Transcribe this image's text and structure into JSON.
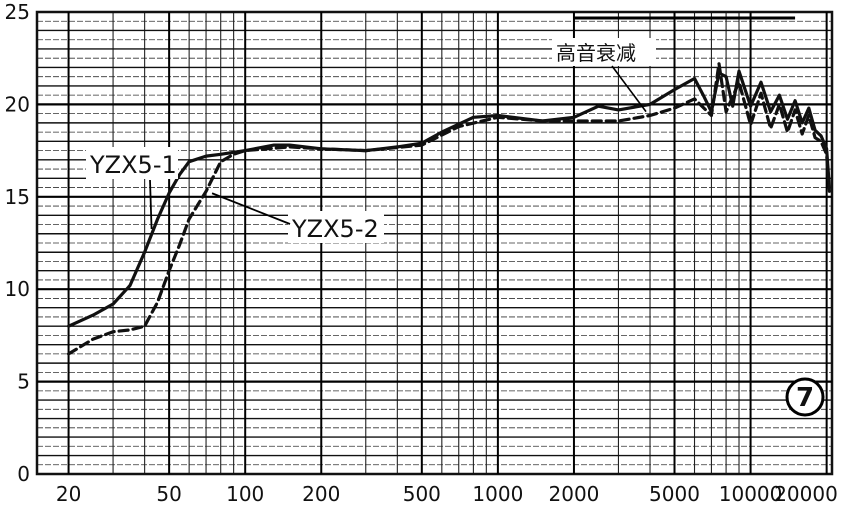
{
  "chart_data": {
    "type": "line",
    "title": "",
    "xlabel": "",
    "ylabel": "",
    "x_scale": "log",
    "xlim": [
      15,
      21000
    ],
    "ylim": [
      0,
      25
    ],
    "grid": true,
    "x_ticks": [
      {
        "value": 20,
        "label": "20"
      },
      {
        "value": 50,
        "label": "50"
      },
      {
        "value": 100,
        "label": "100"
      },
      {
        "value": 200,
        "label": "200"
      },
      {
        "value": 500,
        "label": "500"
      },
      {
        "value": 1000,
        "label": "1000"
      },
      {
        "value": 2000,
        "label": "2000"
      },
      {
        "value": 5000,
        "label": "5000"
      },
      {
        "value": 10000,
        "label": "10000"
      },
      {
        "value": 20000,
        "label": "20000"
      }
    ],
    "y_ticks": [
      {
        "value": 0,
        "label": "0"
      },
      {
        "value": 5,
        "label": "5"
      },
      {
        "value": 10,
        "label": "10"
      },
      {
        "value": 15,
        "label": "15"
      },
      {
        "value": 20,
        "label": "20"
      },
      {
        "value": 25,
        "label": "25"
      }
    ],
    "series": [
      {
        "name": "YZX5-1",
        "style": "solid",
        "color": "#111111",
        "points": [
          [
            20,
            8.0
          ],
          [
            25,
            8.6
          ],
          [
            30,
            9.2
          ],
          [
            35,
            10.2
          ],
          [
            40,
            12.0
          ],
          [
            45,
            13.8
          ],
          [
            50,
            15.2
          ],
          [
            55,
            16.2
          ],
          [
            60,
            16.9
          ],
          [
            70,
            17.2
          ],
          [
            80,
            17.3
          ],
          [
            100,
            17.5
          ],
          [
            130,
            17.8
          ],
          [
            150,
            17.8
          ],
          [
            200,
            17.6
          ],
          [
            300,
            17.5
          ],
          [
            400,
            17.7
          ],
          [
            500,
            17.9
          ],
          [
            600,
            18.5
          ],
          [
            800,
            19.3
          ],
          [
            1000,
            19.4
          ],
          [
            1500,
            19.1
          ],
          [
            2000,
            19.3
          ],
          [
            2500,
            19.9
          ],
          [
            3000,
            19.7
          ],
          [
            4000,
            20.0
          ],
          [
            5000,
            20.8
          ],
          [
            6000,
            21.4
          ],
          [
            6500,
            20.5
          ],
          [
            7000,
            19.6
          ],
          [
            7500,
            21.7
          ],
          [
            8000,
            21.5
          ],
          [
            8500,
            19.9
          ],
          [
            9000,
            21.8
          ],
          [
            10000,
            19.9
          ],
          [
            11000,
            21.2
          ],
          [
            12000,
            19.6
          ],
          [
            13000,
            20.5
          ],
          [
            14000,
            19.2
          ],
          [
            15000,
            20.2
          ],
          [
            16000,
            19.0
          ],
          [
            17000,
            19.8
          ],
          [
            18000,
            18.6
          ],
          [
            19000,
            18.3
          ],
          [
            20000,
            17.6
          ],
          [
            20500,
            15.5
          ]
        ]
      },
      {
        "name": "YZX5-2",
        "style": "dashed",
        "color": "#111111",
        "points": [
          [
            20,
            6.5
          ],
          [
            25,
            7.3
          ],
          [
            30,
            7.7
          ],
          [
            35,
            7.8
          ],
          [
            40,
            8.0
          ],
          [
            45,
            9.3
          ],
          [
            50,
            11.0
          ],
          [
            55,
            12.4
          ],
          [
            60,
            13.8
          ],
          [
            70,
            15.3
          ],
          [
            80,
            16.9
          ],
          [
            90,
            17.3
          ],
          [
            100,
            17.5
          ],
          [
            150,
            17.7
          ],
          [
            200,
            17.6
          ],
          [
            300,
            17.5
          ],
          [
            500,
            17.8
          ],
          [
            700,
            18.8
          ],
          [
            1000,
            19.3
          ],
          [
            1500,
            19.1
          ],
          [
            2000,
            19.1
          ],
          [
            3000,
            19.1
          ],
          [
            4000,
            19.4
          ],
          [
            5000,
            19.8
          ],
          [
            6000,
            20.3
          ],
          [
            7000,
            19.4
          ],
          [
            7500,
            22.2
          ],
          [
            8000,
            19.6
          ],
          [
            9000,
            21.2
          ],
          [
            10000,
            18.9
          ],
          [
            11000,
            20.6
          ],
          [
            12000,
            18.7
          ],
          [
            13000,
            20.0
          ],
          [
            14000,
            18.5
          ],
          [
            15000,
            19.7
          ],
          [
            16000,
            18.4
          ],
          [
            17000,
            19.4
          ],
          [
            18000,
            18.2
          ],
          [
            19000,
            18.0
          ],
          [
            20000,
            17.3
          ],
          [
            20500,
            15.3
          ]
        ]
      }
    ],
    "annotations": [
      {
        "text": "YZX5-1",
        "points_to": [
          45,
          13.8
        ]
      },
      {
        "text": "YZX5-2",
        "points_to": [
          70,
          15.3
        ]
      },
      {
        "text": "高音衰减",
        "points_to": [
          4000,
          19.5
        ]
      },
      {
        "text": "7",
        "enclosure": "circle"
      }
    ]
  }
}
